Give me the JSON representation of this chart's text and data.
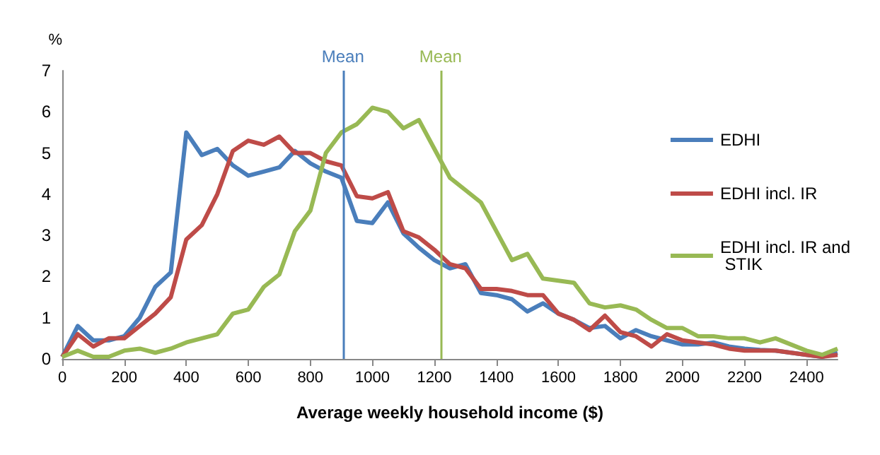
{
  "chart_data": {
    "type": "line",
    "xlabel": "Average weekly household income ($)",
    "ylabel": "%",
    "x": [
      0,
      50,
      100,
      150,
      200,
      250,
      300,
      350,
      400,
      450,
      500,
      550,
      600,
      650,
      700,
      750,
      800,
      850,
      900,
      950,
      1000,
      1050,
      1100,
      1150,
      1200,
      1250,
      1300,
      1350,
      1400,
      1450,
      1500,
      1550,
      1600,
      1650,
      1700,
      1750,
      1800,
      1850,
      1900,
      1950,
      2000,
      2050,
      2100,
      2150,
      2200,
      2250,
      2300,
      2350,
      2400,
      2450,
      2500
    ],
    "series": [
      {
        "name": "EDHI",
        "color": "#4a7ebb",
        "values": [
          0.05,
          0.8,
          0.45,
          0.45,
          0.55,
          1.0,
          1.75,
          2.1,
          5.5,
          4.95,
          5.1,
          4.7,
          4.45,
          4.55,
          4.65,
          5.05,
          4.75,
          4.55,
          4.4,
          3.35,
          3.3,
          3.8,
          3.05,
          2.7,
          2.4,
          2.2,
          2.3,
          1.6,
          1.55,
          1.45,
          1.15,
          1.35,
          1.1,
          0.95,
          0.75,
          0.8,
          0.5,
          0.7,
          0.55,
          0.45,
          0.35,
          0.35,
          0.4,
          0.3,
          0.25,
          0.22,
          0.2,
          0.15,
          0.1,
          0.05,
          0.15
        ]
      },
      {
        "name": "EDHI incl. IR",
        "color": "#be4b48",
        "values": [
          0.05,
          0.6,
          0.3,
          0.5,
          0.5,
          0.8,
          1.1,
          1.5,
          2.9,
          3.25,
          4.0,
          5.05,
          5.3,
          5.2,
          5.4,
          5.0,
          5.0,
          4.8,
          4.7,
          3.95,
          3.9,
          4.05,
          3.1,
          2.95,
          2.65,
          2.3,
          2.2,
          1.7,
          1.7,
          1.65,
          1.55,
          1.55,
          1.1,
          0.95,
          0.7,
          1.05,
          0.65,
          0.55,
          0.3,
          0.6,
          0.45,
          0.4,
          0.35,
          0.25,
          0.2,
          0.2,
          0.2,
          0.15,
          0.1,
          0.05,
          0.1
        ]
      },
      {
        "name": "EDHI incl. IR and STIK",
        "color": "#98b954",
        "values": [
          0.05,
          0.2,
          0.05,
          0.05,
          0.2,
          0.25,
          0.15,
          0.25,
          0.4,
          0.5,
          0.6,
          1.1,
          1.2,
          1.75,
          2.05,
          3.1,
          3.6,
          5.0,
          5.5,
          5.7,
          6.1,
          6.0,
          5.6,
          5.8,
          5.1,
          4.4,
          4.1,
          3.8,
          3.1,
          2.4,
          2.55,
          1.95,
          1.9,
          1.85,
          1.35,
          1.25,
          1.3,
          1.2,
          0.95,
          0.75,
          0.75,
          0.55,
          0.55,
          0.5,
          0.5,
          0.4,
          0.5,
          0.35,
          0.2,
          0.1,
          0.25
        ]
      }
    ],
    "ref_lines": [
      {
        "axis": "x",
        "value": 905,
        "label": "Mean",
        "color": "#4a7ebb"
      },
      {
        "axis": "x",
        "value": 1220,
        "label": "Mean",
        "color": "#98b954"
      }
    ],
    "xlim": [
      0,
      2500
    ],
    "xticks": [
      0,
      200,
      400,
      600,
      800,
      1000,
      1200,
      1400,
      1600,
      1800,
      2000,
      2200,
      2400
    ],
    "ylim": [
      0,
      7
    ],
    "yticks": [
      0,
      1,
      2,
      3,
      4,
      5,
      6,
      7
    ],
    "grid": false,
    "legend": "right",
    "marker": "none",
    "line_style": "solid"
  }
}
